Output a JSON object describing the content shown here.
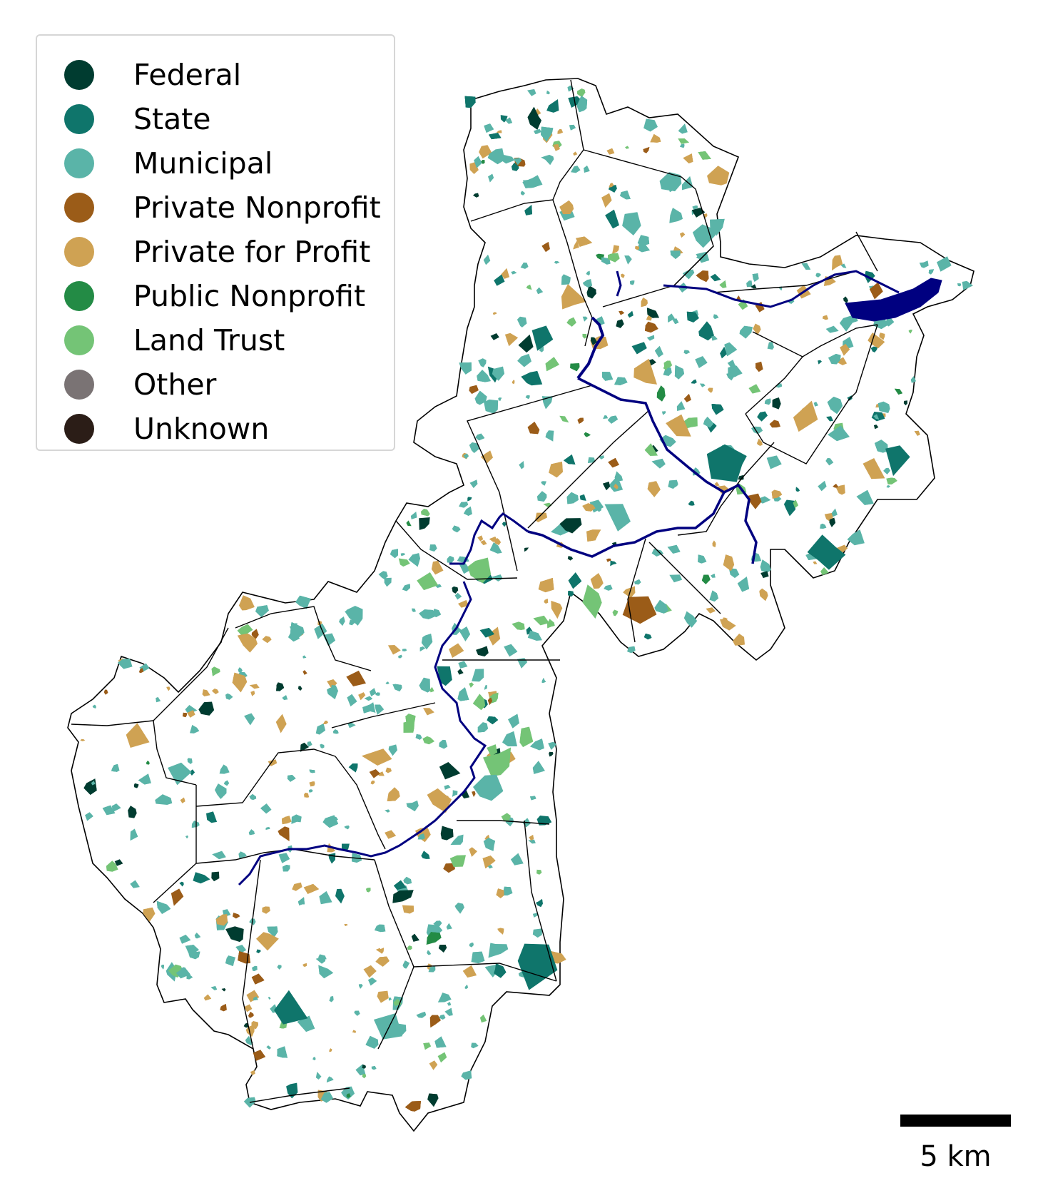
{
  "legend": {
    "items": [
      {
        "label": "Federal",
        "color": "#003c30"
      },
      {
        "label": "State",
        "color": "#0f756b"
      },
      {
        "label": "Municipal",
        "color": "#5ab4a8"
      },
      {
        "label": "Private Nonprofit",
        "color": "#9b5c18"
      },
      {
        "label": "Private for Profit",
        "color": "#cfa253"
      },
      {
        "label": "Public Nonprofit",
        "color": "#238b45"
      },
      {
        "label": "Land Trust",
        "color": "#74c476"
      },
      {
        "label": "Other",
        "color": "#7a7374"
      },
      {
        "label": "Unknown",
        "color": "#2b1d17"
      }
    ]
  },
  "scale_bar": {
    "label": "5 km"
  },
  "colors": {
    "river": "#000080",
    "boundary": "#000000",
    "background": "#ffffff"
  }
}
